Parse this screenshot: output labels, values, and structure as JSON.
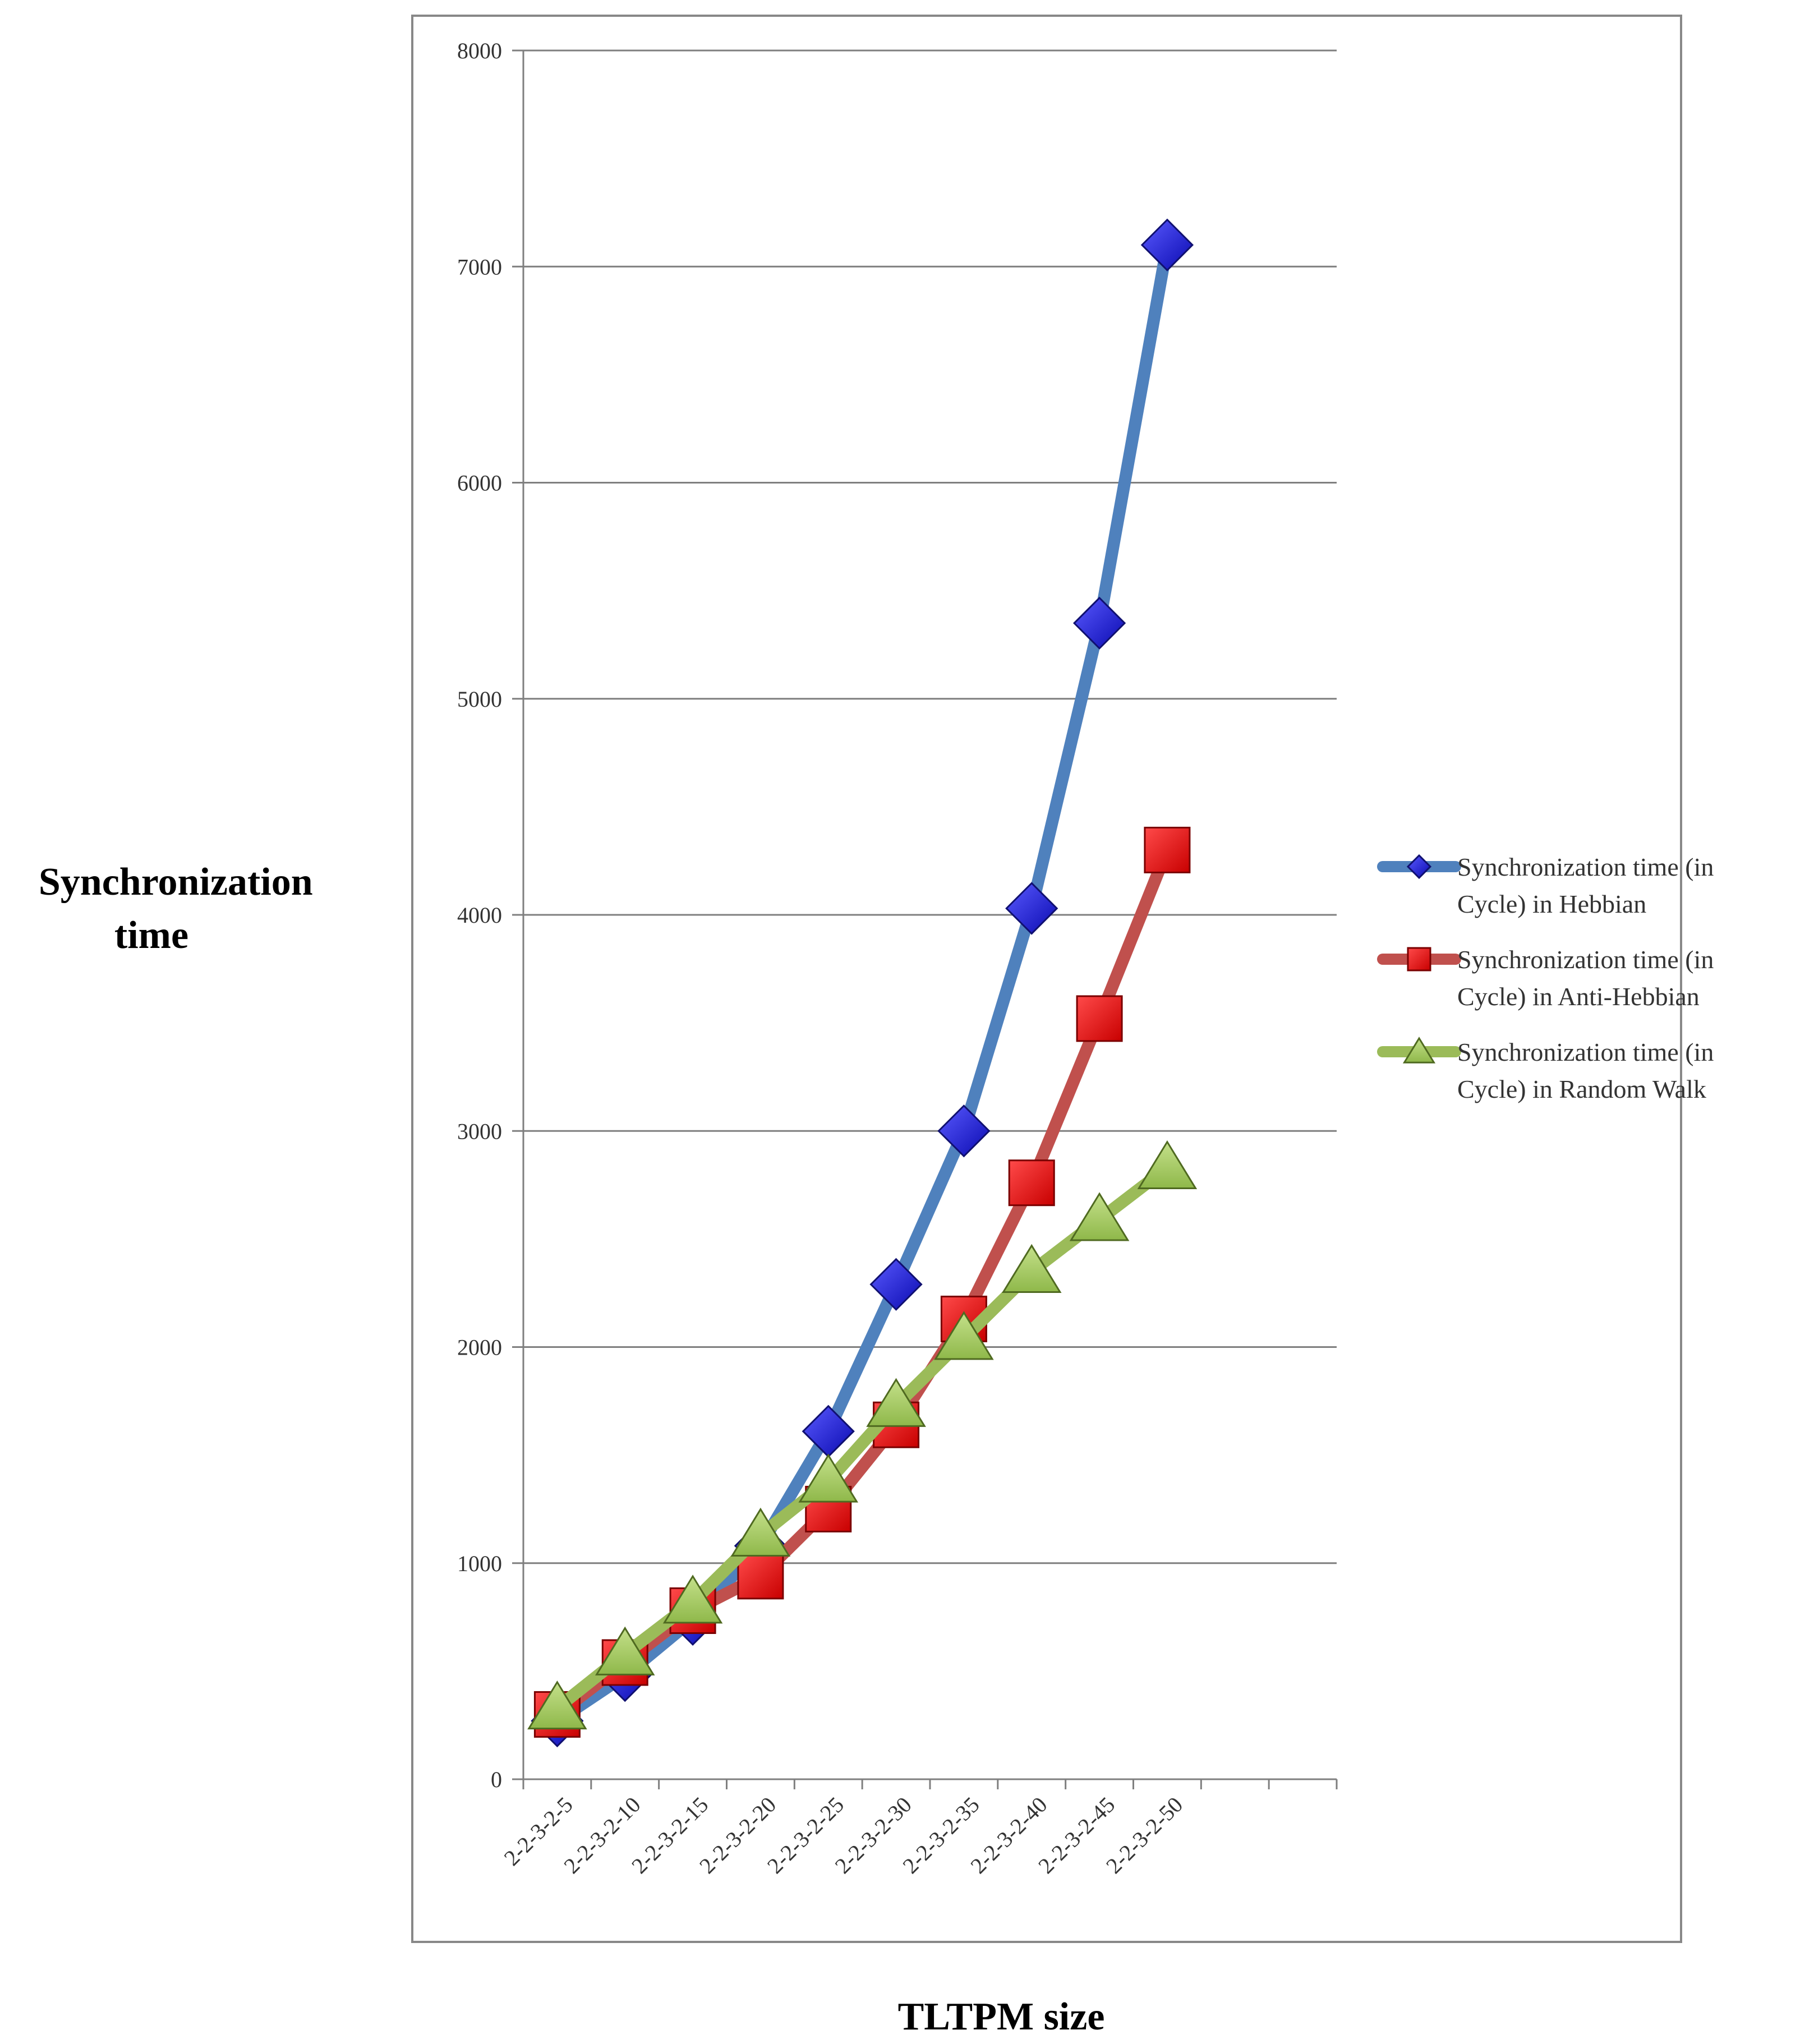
{
  "chart_data": {
    "type": "line",
    "title": "",
    "ylabel_lines": [
      "Synchronization",
      "time"
    ],
    "xlabel": "TLTPM size",
    "categories": [
      "2-2-3-2-5",
      "2-2-3-2-10",
      "2-2-3-2-15",
      "2-2-3-2-20",
      "2-2-3-2-25",
      "2-2-3-2-30",
      "2-2-3-2-35",
      "2-2-3-2-40",
      "2-2-3-2-45",
      "2-2-3-2-50"
    ],
    "ylim": [
      0,
      8000
    ],
    "yticks": [
      "0",
      "1000",
      "2000",
      "3000",
      "4000",
      "5000",
      "6000",
      "7000",
      "8000"
    ],
    "grid": true,
    "legend_position": "right",
    "series": [
      {
        "name_lines": [
          "Synchronization time (in",
          "Cycle) in Hebbian"
        ],
        "marker": "diamond",
        "line_color": "#4f81bd",
        "marker_color": "#1f1fe0",
        "values": [
          270,
          480,
          740,
          1080,
          1610,
          2290,
          3000,
          4030,
          5350,
          7100
        ]
      },
      {
        "name_lines": [
          "Synchronization time (in",
          "Cycle) in Anti-Hebbian"
        ],
        "marker": "square",
        "line_color": "#c0504d",
        "marker_color": "#ee1c1c",
        "values": [
          300,
          540,
          780,
          940,
          1250,
          1640,
          2130,
          2760,
          3520,
          4300
        ]
      },
      {
        "name_lines": [
          "Synchronization time (in",
          "Cycle) in Random Walk"
        ],
        "marker": "triangle",
        "line_color": "#9bbb59",
        "marker_color": "#9bc842",
        "values": [
          330,
          580,
          820,
          1130,
          1380,
          1730,
          2040,
          2350,
          2590,
          2830
        ]
      }
    ]
  }
}
